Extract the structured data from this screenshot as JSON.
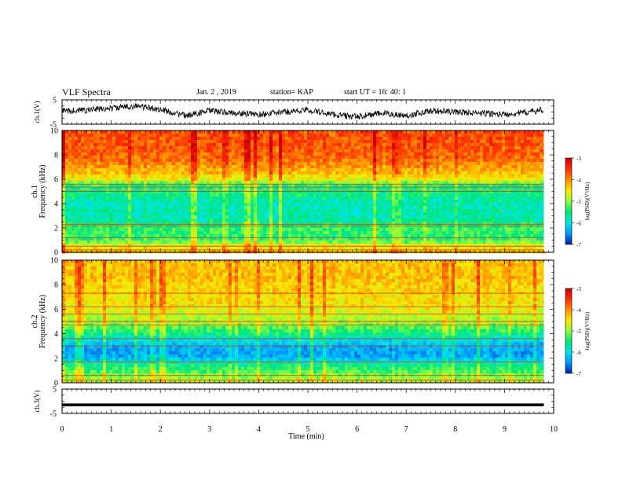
{
  "header": {
    "title": "VLF Spectra",
    "date": "Jan. 2 , 2019",
    "station": "station= KAP",
    "start_ut": "start UT = 16: 40: 1"
  },
  "colorscale": {
    "label": "log(PSD)(V²/Hz)",
    "ticks": [
      "-3",
      "-4",
      "-5",
      "-6",
      "-7"
    ],
    "stops": [
      "#cc0000",
      "#ff2a00",
      "#ff8c00",
      "#ffe600",
      "#8cff3c",
      "#00e67a",
      "#00e6e6",
      "#0096ff",
      "#001ea0"
    ]
  },
  "chart_data": [
    {
      "type": "line",
      "panel": "ch1",
      "ylabel": "ch.1(V)",
      "ylim": [
        -5,
        5
      ],
      "yticks": [
        "5",
        "-5"
      ],
      "x": [
        0,
        0.5,
        1.0,
        1.5,
        2.0,
        2.5,
        3.0,
        3.5,
        4.0,
        4.5,
        5.0,
        5.5,
        6.0,
        6.5,
        7.0,
        7.5,
        8.0,
        8.5,
        9.0,
        9.5,
        9.8
      ],
      "values": [
        0.5,
        0.8,
        1.5,
        2.5,
        1.0,
        -1.5,
        0.5,
        -0.5,
        -1.0,
        0.0,
        0.8,
        -1.0,
        -2.0,
        -0.5,
        -1.5,
        0.5,
        0.0,
        -0.5,
        -1.0,
        0.0,
        1.0
      ]
    },
    {
      "type": "heatmap",
      "panel": "ch1-spectrogram",
      "ylabel": "ch.1",
      "ylabel2": "Frequency (kHz)",
      "ylim": [
        0,
        10
      ],
      "yticks": [
        "0",
        "2",
        "4",
        "6",
        "8",
        "10"
      ],
      "profile_freq_khz": [
        0,
        0.5,
        1,
        1.5,
        2,
        2.5,
        3,
        3.5,
        4,
        4.5,
        5,
        5.5,
        6,
        6.5,
        7,
        7.5,
        8,
        8.5,
        9,
        9.5,
        10
      ],
      "profile_log_psd": [
        -4.3,
        -4.6,
        -5.3,
        -5.4,
        -5.3,
        -5.6,
        -5.8,
        -5.7,
        -5.8,
        -5.6,
        -5.5,
        -5.4,
        -4.6,
        -4.3,
        -4.1,
        -3.9,
        -3.8,
        -3.75,
        -3.7,
        -3.7,
        -3.7
      ],
      "line_freqs_khz": [
        0.2,
        0.5,
        1.2,
        2.15,
        2.3,
        5.0,
        5.35,
        5.6
      ]
    },
    {
      "type": "heatmap",
      "panel": "ch2-spectrogram",
      "ylabel": "ch.2",
      "ylabel2": "Frequency (kHz)",
      "ylim": [
        0,
        10
      ],
      "yticks": [
        "0",
        "2",
        "4",
        "6",
        "8",
        "10"
      ],
      "profile_freq_khz": [
        0,
        0.5,
        1,
        1.5,
        2,
        2.5,
        3,
        3.5,
        4,
        4.5,
        5,
        5.5,
        6,
        6.5,
        7,
        7.5,
        8,
        8.5,
        9,
        9.5,
        10
      ],
      "profile_log_psd": [
        -4.8,
        -5.0,
        -5.3,
        -5.6,
        -6.3,
        -6.4,
        -6.3,
        -6.0,
        -5.5,
        -5.2,
        -4.9,
        -4.8,
        -4.6,
        -4.5,
        -4.5,
        -4.4,
        -4.4,
        -4.3,
        -4.3,
        -4.3,
        -4.3
      ],
      "line_freqs_khz": [
        0.2,
        0.6,
        1.7,
        3.0,
        3.6,
        4.7,
        5.0,
        5.6,
        6.2,
        7.3
      ]
    },
    {
      "type": "line",
      "panel": "ch3",
      "ylabel": "ch.3(V)",
      "ylim": [
        -5,
        5
      ],
      "yticks": [
        "5",
        "-5"
      ],
      "x": [
        0,
        9.8
      ],
      "values": [
        -1.5,
        -1.5
      ]
    }
  ],
  "xaxis": {
    "label": "Time (min)",
    "ticks": [
      "0",
      "1",
      "2",
      "3",
      "4",
      "5",
      "6",
      "7",
      "8",
      "9",
      "10"
    ],
    "xlim": [
      0,
      10
    ],
    "data_end": 9.8
  }
}
